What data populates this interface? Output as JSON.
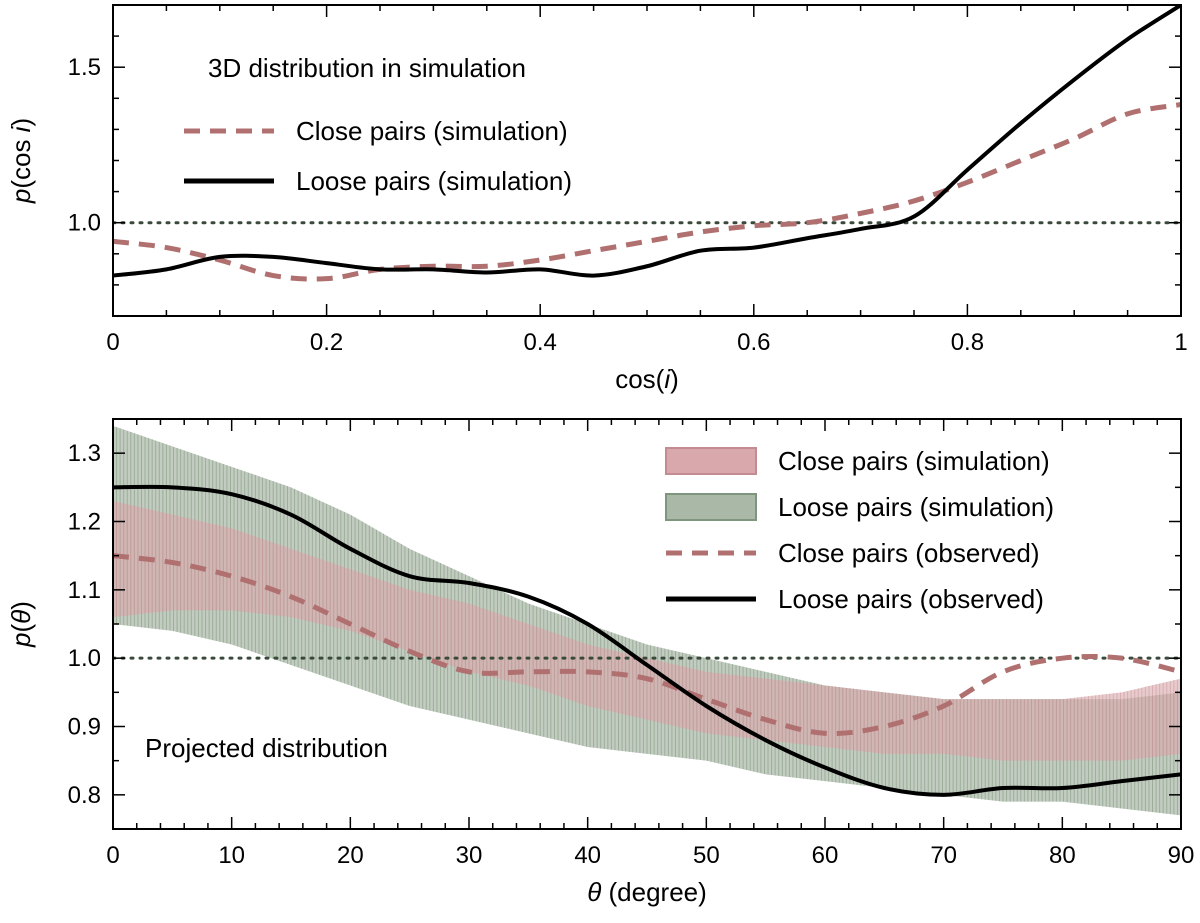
{
  "colors": {
    "close": "#b07070",
    "close_band": "#d8a8ac",
    "loose": "#000000",
    "loose_band": "#8fa38d",
    "reference": "#3a4a3a"
  },
  "chart_data": [
    {
      "type": "line",
      "ylabel_italic": "p",
      "ylabel_rest": "(cos ",
      "ylabel_italic2": "i",
      "ylabel_close": ")",
      "xlabel_pre": "cos(",
      "xlabel_italic": "i",
      "xlabel_post": ")",
      "xlim": [
        0,
        1
      ],
      "ylim": [
        0.7,
        1.7
      ],
      "xticks": [
        0,
        0.2,
        0.4,
        0.6,
        0.8,
        1
      ],
      "xtick_labels": [
        "0",
        "0.2",
        "0.4",
        "0.6",
        "0.8",
        "1"
      ],
      "yticks": [
        1.0,
        1.5
      ],
      "ytick_labels": [
        "1.0",
        "1.5"
      ],
      "reference_line": 1.0,
      "annotation": "3D distribution in simulation",
      "legend": [
        {
          "label": "Close pairs (simulation)",
          "style": "dashed"
        },
        {
          "label": "Loose pairs (simulation)",
          "style": "solid"
        }
      ],
      "series": [
        {
          "name": "Close pairs (simulation)",
          "x": [
            0,
            0.05,
            0.1,
            0.15,
            0.2,
            0.25,
            0.3,
            0.35,
            0.4,
            0.45,
            0.5,
            0.55,
            0.6,
            0.65,
            0.7,
            0.75,
            0.8,
            0.85,
            0.9,
            0.95,
            1.0
          ],
          "y": [
            0.94,
            0.92,
            0.88,
            0.83,
            0.82,
            0.85,
            0.86,
            0.86,
            0.88,
            0.91,
            0.94,
            0.97,
            0.99,
            1.0,
            1.03,
            1.07,
            1.13,
            1.2,
            1.27,
            1.35,
            1.38
          ]
        },
        {
          "name": "Loose pairs (simulation)",
          "x": [
            0,
            0.05,
            0.1,
            0.15,
            0.2,
            0.25,
            0.3,
            0.35,
            0.4,
            0.45,
            0.5,
            0.55,
            0.6,
            0.65,
            0.7,
            0.75,
            0.8,
            0.85,
            0.9,
            0.95,
            1.0
          ],
          "y": [
            0.83,
            0.85,
            0.89,
            0.89,
            0.87,
            0.85,
            0.85,
            0.84,
            0.85,
            0.83,
            0.86,
            0.91,
            0.92,
            0.95,
            0.98,
            1.02,
            1.17,
            1.32,
            1.46,
            1.59,
            1.7
          ]
        }
      ]
    },
    {
      "type": "line",
      "ylabel_italic": "p",
      "ylabel_rest": "(",
      "ylabel_italic2": "θ",
      "ylabel_close": ")",
      "xlabel_pre": "",
      "xlabel_italic": "θ",
      "xlabel_post": " (degree)",
      "xlim": [
        0,
        90
      ],
      "ylim": [
        0.75,
        1.35
      ],
      "xticks": [
        0,
        10,
        20,
        30,
        40,
        50,
        60,
        70,
        80,
        90
      ],
      "xtick_labels": [
        "0",
        "10",
        "20",
        "30",
        "40",
        "50",
        "60",
        "70",
        "80",
        "90"
      ],
      "yticks": [
        0.8,
        0.9,
        1.0,
        1.1,
        1.2,
        1.3
      ],
      "ytick_labels": [
        "0.8",
        "0.9",
        "1.0",
        "1.1",
        "1.2",
        "1.3"
      ],
      "reference_line": 1.0,
      "annotation": "Projected distribution",
      "legend": [
        {
          "label": "Close pairs (simulation)",
          "style": "band-close"
        },
        {
          "label": "Loose pairs (simulation)",
          "style": "band-loose"
        },
        {
          "label": "Close pairs (observed)",
          "style": "dashed"
        },
        {
          "label": "Loose pairs (observed)",
          "style": "solid"
        }
      ],
      "bands": [
        {
          "name": "Loose pairs (simulation)",
          "x": [
            0,
            5,
            10,
            15,
            20,
            25,
            30,
            35,
            40,
            45,
            50,
            55,
            60,
            65,
            70,
            75,
            80,
            85,
            90
          ],
          "lower": [
            1.05,
            1.04,
            1.02,
            0.99,
            0.96,
            0.93,
            0.91,
            0.89,
            0.87,
            0.86,
            0.85,
            0.83,
            0.82,
            0.81,
            0.8,
            0.79,
            0.79,
            0.78,
            0.77
          ],
          "upper": [
            1.34,
            1.31,
            1.28,
            1.25,
            1.21,
            1.16,
            1.12,
            1.08,
            1.05,
            1.02,
            1.0,
            0.98,
            0.96,
            0.95,
            0.94,
            0.94,
            0.94,
            0.94,
            0.95
          ]
        },
        {
          "name": "Close pairs (simulation)",
          "x": [
            0,
            5,
            10,
            15,
            20,
            25,
            30,
            35,
            40,
            45,
            50,
            55,
            60,
            65,
            70,
            75,
            80,
            85,
            90
          ],
          "lower": [
            1.06,
            1.07,
            1.07,
            1.06,
            1.04,
            1.01,
            0.98,
            0.96,
            0.93,
            0.91,
            0.89,
            0.88,
            0.87,
            0.86,
            0.86,
            0.85,
            0.85,
            0.85,
            0.86
          ],
          "upper": [
            1.23,
            1.21,
            1.19,
            1.16,
            1.13,
            1.1,
            1.08,
            1.05,
            1.02,
            1.0,
            0.98,
            0.97,
            0.96,
            0.95,
            0.94,
            0.94,
            0.94,
            0.95,
            0.97
          ]
        }
      ],
      "series": [
        {
          "name": "Close pairs (observed)",
          "x": [
            0,
            5,
            10,
            15,
            20,
            25,
            30,
            35,
            40,
            45,
            50,
            55,
            60,
            65,
            70,
            75,
            80,
            85,
            90
          ],
          "y": [
            1.15,
            1.14,
            1.12,
            1.09,
            1.05,
            1.01,
            0.98,
            0.98,
            0.98,
            0.97,
            0.94,
            0.91,
            0.89,
            0.9,
            0.93,
            0.98,
            1.0,
            1.0,
            0.98
          ]
        },
        {
          "name": "Loose pairs (observed)",
          "x": [
            0,
            5,
            10,
            15,
            20,
            25,
            30,
            35,
            40,
            45,
            50,
            55,
            60,
            65,
            70,
            75,
            80,
            85,
            90
          ],
          "y": [
            1.25,
            1.25,
            1.24,
            1.21,
            1.16,
            1.12,
            1.11,
            1.09,
            1.05,
            0.99,
            0.93,
            0.88,
            0.84,
            0.81,
            0.8,
            0.81,
            0.81,
            0.82,
            0.83
          ]
        }
      ]
    }
  ]
}
